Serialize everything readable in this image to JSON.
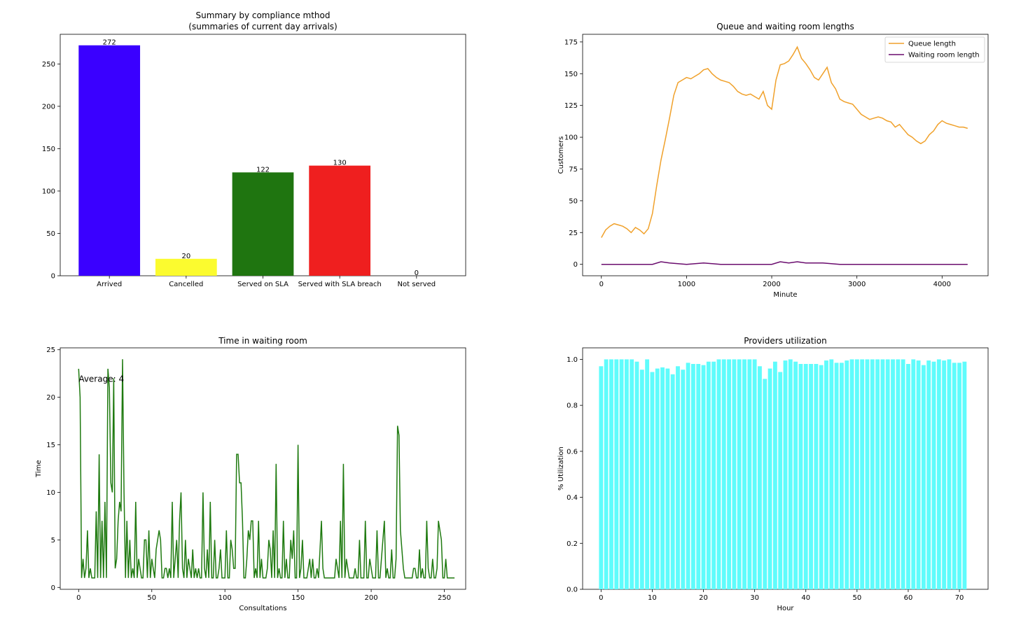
{
  "chart_data": [
    {
      "type": "bar",
      "title": "Summary by compliance mthod",
      "subtitle": "(summaries of current day arrivals)",
      "xlabel": "",
      "ylabel": "",
      "categories": [
        "Arrived",
        "Cancelled",
        "Served on SLA",
        "Served with SLA breach",
        "Not served"
      ],
      "values": [
        272,
        20,
        122,
        130,
        0
      ],
      "colors": [
        "#3a00ff",
        "#fbfb2f",
        "#1f7510",
        "#ef1f1f",
        "#7f7f7f"
      ],
      "ylim": [
        0,
        285
      ],
      "yticks": [
        0,
        50,
        100,
        150,
        200,
        250
      ],
      "grid": false
    },
    {
      "type": "line",
      "title": "Queue and waiting room lengths",
      "xlabel": "Minute",
      "ylabel": "Customers",
      "xlim": [
        -220,
        4540
      ],
      "ylim": [
        -9,
        181
      ],
      "xticks": [
        0,
        1000,
        2000,
        3000,
        4000
      ],
      "yticks": [
        0,
        25,
        50,
        75,
        100,
        125,
        150,
        175
      ],
      "legend": "top-right",
      "grid": false,
      "series": [
        {
          "name": "Queue length",
          "color": "#f0a12b",
          "x": [
            0,
            50,
            100,
            150,
            200,
            250,
            300,
            350,
            400,
            450,
            500,
            550,
            600,
            650,
            700,
            750,
            800,
            850,
            900,
            950,
            1000,
            1050,
            1100,
            1150,
            1200,
            1250,
            1300,
            1350,
            1400,
            1450,
            1500,
            1550,
            1600,
            1650,
            1700,
            1750,
            1800,
            1850,
            1900,
            1950,
            2000,
            2050,
            2100,
            2150,
            2200,
            2250,
            2300,
            2350,
            2400,
            2450,
            2500,
            2550,
            2600,
            2650,
            2700,
            2750,
            2800,
            2850,
            2900,
            2950,
            3000,
            3050,
            3100,
            3150,
            3200,
            3250,
            3300,
            3350,
            3400,
            3450,
            3500,
            3550,
            3600,
            3650,
            3700,
            3750,
            3800,
            3850,
            3900,
            3950,
            4000,
            4050,
            4100,
            4150,
            4200,
            4250,
            4300
          ],
          "y": [
            21,
            27,
            30,
            32,
            31,
            30,
            28,
            25,
            29,
            27,
            24,
            28,
            40,
            62,
            82,
            98,
            115,
            133,
            143,
            145,
            147,
            146,
            148,
            150,
            153,
            154,
            150,
            147,
            145,
            144,
            143,
            140,
            136,
            134,
            133,
            134,
            132,
            130,
            136,
            125,
            122,
            145,
            157,
            158,
            160,
            165,
            171,
            162,
            158,
            153,
            147,
            145,
            150,
            155,
            143,
            138,
            130,
            128,
            127,
            126,
            122,
            118,
            116,
            114,
            115,
            116,
            115,
            113,
            112,
            108,
            110,
            106,
            102,
            100,
            97,
            95,
            97,
            102,
            105,
            110,
            113,
            111,
            110,
            109,
            108,
            108,
            107
          ]
        },
        {
          "name": "Waiting room length",
          "color": "#6a0c6e",
          "x": [
            0,
            200,
            400,
            600,
            700,
            800,
            1000,
            1200,
            1400,
            1600,
            1800,
            2000,
            2100,
            2200,
            2300,
            2400,
            2600,
            2800,
            3000,
            3200,
            3400,
            3600,
            3800,
            4000,
            4200,
            4300
          ],
          "y": [
            0,
            0,
            0,
            0,
            2,
            1,
            0,
            1,
            0,
            0,
            0,
            0,
            2,
            1,
            2,
            1,
            1,
            0,
            0,
            0,
            0,
            0,
            0,
            0,
            0,
            0
          ]
        }
      ]
    },
    {
      "type": "line",
      "title": "Time in waiting room",
      "xlabel": "Consultations",
      "ylabel": "Time",
      "annotation": "Average: 4",
      "xlim": [
        -12.6,
        264.6
      ],
      "ylim": [
        -0.2,
        25.2
      ],
      "xticks": [
        0,
        50,
        100,
        150,
        200,
        250
      ],
      "yticks": [
        0,
        5,
        10,
        15,
        20,
        25
      ],
      "grid": false,
      "series": [
        {
          "name": "",
          "color": "#1f7a10",
          "values": [
            23,
            20,
            1,
            3,
            1,
            2,
            6,
            1,
            2,
            1,
            1,
            1,
            8,
            1,
            14,
            1,
            7,
            1,
            9,
            1,
            23,
            21,
            11,
            10,
            22,
            2,
            3,
            7,
            9,
            8,
            24,
            10,
            1,
            7,
            1,
            5,
            1,
            2,
            1,
            9,
            1,
            3,
            2,
            1,
            1,
            5,
            5,
            1,
            6,
            1,
            3,
            2,
            1,
            4,
            5,
            6,
            5,
            1,
            1,
            2,
            2,
            1,
            2,
            1,
            9,
            1,
            3,
            5,
            1,
            7,
            10,
            2,
            1,
            5,
            1,
            3,
            2,
            1,
            4,
            1,
            2,
            1,
            2,
            1,
            1,
            10,
            2,
            1,
            4,
            1,
            9,
            1,
            1,
            5,
            1,
            1,
            2,
            4,
            1,
            1,
            1,
            6,
            1,
            1,
            5,
            4,
            2,
            2,
            14,
            14,
            11,
            11,
            7,
            1,
            1,
            3,
            6,
            5,
            7,
            7,
            1,
            2,
            1,
            7,
            1,
            3,
            1,
            1,
            1,
            2,
            5,
            4,
            1,
            6,
            1,
            13,
            1,
            2,
            1,
            1,
            7,
            1,
            3,
            1,
            1,
            5,
            3,
            6,
            1,
            1,
            15,
            1,
            2,
            5,
            1,
            1,
            1,
            2,
            3,
            1,
            3,
            1,
            1,
            2,
            1,
            4,
            7,
            2,
            1,
            1,
            1,
            1,
            1,
            1,
            1,
            1,
            3,
            2,
            1,
            7,
            1,
            13,
            1,
            3,
            2,
            1,
            1,
            1,
            1,
            2,
            1,
            1,
            5,
            1,
            1,
            1,
            7,
            1,
            1,
            3,
            2,
            1,
            1,
            1,
            6,
            1,
            1,
            3,
            5,
            7,
            1,
            2,
            1,
            1,
            4,
            1,
            1,
            3,
            17,
            16,
            6,
            4,
            2,
            1,
            1,
            1,
            1,
            1,
            1,
            2,
            2,
            1,
            1,
            4,
            1,
            2,
            1,
            1,
            7,
            2,
            1,
            1,
            3,
            1,
            1,
            2,
            7,
            6,
            5,
            1,
            1,
            3,
            1,
            1,
            1,
            1,
            1,
            1
          ]
        }
      ]
    },
    {
      "type": "bar",
      "title": "Providers utilization",
      "xlabel": "Hour",
      "ylabel": "% Utilization",
      "color": "#5ffcfc",
      "xlim": [
        -3.6,
        75.6
      ],
      "ylim": [
        0,
        1.05
      ],
      "xticks": [
        0,
        10,
        20,
        30,
        40,
        50,
        60,
        70
      ],
      "yticks": [
        "0.0",
        "0.2",
        "0.4",
        "0.6",
        "0.8",
        "1.0"
      ],
      "grid": false,
      "x": [
        0,
        1,
        2,
        3,
        4,
        5,
        6,
        7,
        8,
        9,
        10,
        11,
        12,
        13,
        14,
        15,
        16,
        17,
        18,
        19,
        20,
        21,
        22,
        23,
        24,
        25,
        26,
        27,
        28,
        29,
        30,
        31,
        32,
        33,
        34,
        35,
        36,
        37,
        38,
        39,
        40,
        41,
        42,
        43,
        44,
        45,
        46,
        47,
        48,
        49,
        50,
        51,
        52,
        53,
        54,
        55,
        56,
        57,
        58,
        59,
        60,
        61,
        62,
        63,
        64,
        65,
        66,
        67,
        68,
        69,
        70,
        71
      ],
      "values": [
        0.97,
        1.0,
        1.0,
        1.0,
        1.0,
        1.0,
        1.0,
        0.99,
        0.955,
        1.0,
        0.945,
        0.96,
        0.965,
        0.96,
        0.935,
        0.97,
        0.955,
        0.985,
        0.98,
        0.98,
        0.975,
        0.99,
        0.99,
        1.0,
        1.0,
        1.0,
        1.0,
        1.0,
        1.0,
        1.0,
        1.0,
        0.97,
        0.915,
        0.96,
        0.99,
        0.945,
        0.995,
        1.0,
        0.99,
        0.98,
        0.98,
        0.98,
        0.98,
        0.975,
        0.995,
        1.0,
        0.985,
        0.985,
        0.995,
        1.0,
        1.0,
        1.0,
        1.0,
        1.0,
        1.0,
        1.0,
        1.0,
        1.0,
        1.0,
        1.0,
        0.98,
        1.0,
        0.995,
        0.975,
        0.995,
        0.99,
        1.0,
        0.995,
        1.0,
        0.985,
        0.985,
        0.99
      ]
    }
  ]
}
